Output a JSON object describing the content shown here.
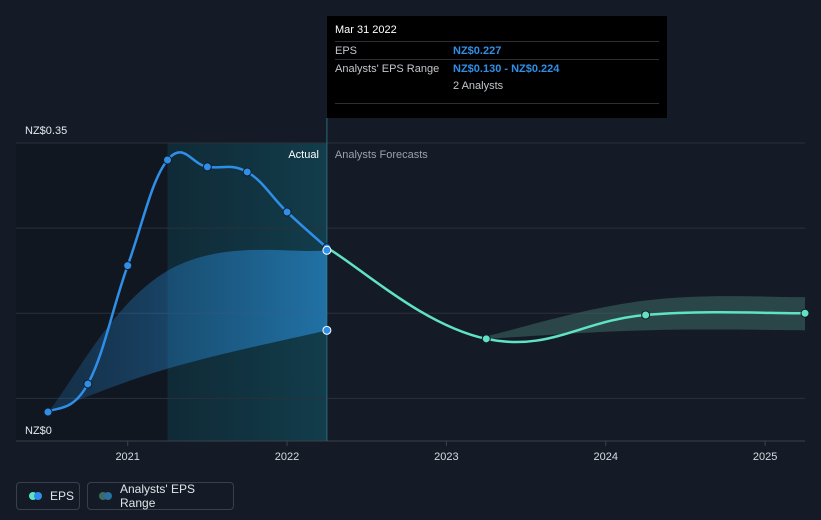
{
  "chart_data": {
    "type": "line",
    "x_axis": {
      "ticks": [
        "2021",
        "2022",
        "2023",
        "2024",
        "2025"
      ],
      "tick_values": [
        2021.0,
        2022.0,
        2023.0,
        2024.0,
        2025.0
      ],
      "range": [
        2020.5,
        2025.25
      ]
    },
    "y_axis": {
      "labels": [
        "NZ$0.35",
        "NZ$0"
      ],
      "label_values": [
        0.35,
        0.0
      ],
      "range": [
        0.0,
        0.35
      ]
    },
    "section_labels": {
      "actual": "Actual",
      "forecast": "Analysts Forecasts"
    },
    "divider_x": 2022.25,
    "series": [
      {
        "name": "EPS",
        "kind": "actual",
        "color": "#2f8fe8",
        "points": [
          {
            "x": 2020.5,
            "y": 0.034
          },
          {
            "x": 2020.75,
            "y": 0.067
          },
          {
            "x": 2021.0,
            "y": 0.206
          },
          {
            "x": 2021.25,
            "y": 0.33
          },
          {
            "x": 2021.5,
            "y": 0.322
          },
          {
            "x": 2021.75,
            "y": 0.316
          },
          {
            "x": 2022.0,
            "y": 0.269
          },
          {
            "x": 2022.25,
            "y": 0.227
          }
        ]
      },
      {
        "name": "EPS",
        "kind": "forecast",
        "color": "#5fe3c4",
        "points": [
          {
            "x": 2022.25,
            "y": 0.227
          },
          {
            "x": 2023.25,
            "y": 0.12
          },
          {
            "x": 2024.25,
            "y": 0.148
          },
          {
            "x": 2025.25,
            "y": 0.15
          }
        ]
      }
    ],
    "ranges": [
      {
        "name": "Analysts' EPS Range",
        "kind": "actual",
        "color": "#2a8fd8",
        "points": [
          {
            "x": 2020.5,
            "low": 0.034,
            "high": 0.034
          },
          {
            "x": 2021.25,
            "low": 0.085,
            "high": 0.2
          },
          {
            "x": 2022.25,
            "low": 0.13,
            "high": 0.224
          }
        ]
      },
      {
        "name": "Analysts' EPS Range",
        "kind": "forecast",
        "color": "#3e6a66",
        "points": [
          {
            "x": 2023.25,
            "low": 0.12,
            "high": 0.123
          },
          {
            "x": 2024.25,
            "low": 0.13,
            "high": 0.165
          },
          {
            "x": 2025.25,
            "low": 0.13,
            "high": 0.169
          }
        ]
      }
    ],
    "markers": [
      {
        "x": 2022.25,
        "y": 0.224,
        "color": "#2f8fe8"
      },
      {
        "x": 2022.25,
        "y": 0.13,
        "color": "#2f8fe8"
      }
    ]
  },
  "tooltip": {
    "date": "Mar 31 2022",
    "rows": [
      {
        "key": "EPS",
        "value": "NZ$0.227"
      },
      {
        "key": "Analysts' EPS Range",
        "value": "NZ$0.130 - NZ$0.224"
      }
    ],
    "analysts": "2 Analysts"
  },
  "legend": {
    "eps_label": "EPS",
    "range_label": "Analysts' EPS Range",
    "eps_colors": [
      "#5fe3c4",
      "#2f8fe8"
    ],
    "range_colors": [
      "#3e6a66",
      "#2a6f9e"
    ]
  }
}
